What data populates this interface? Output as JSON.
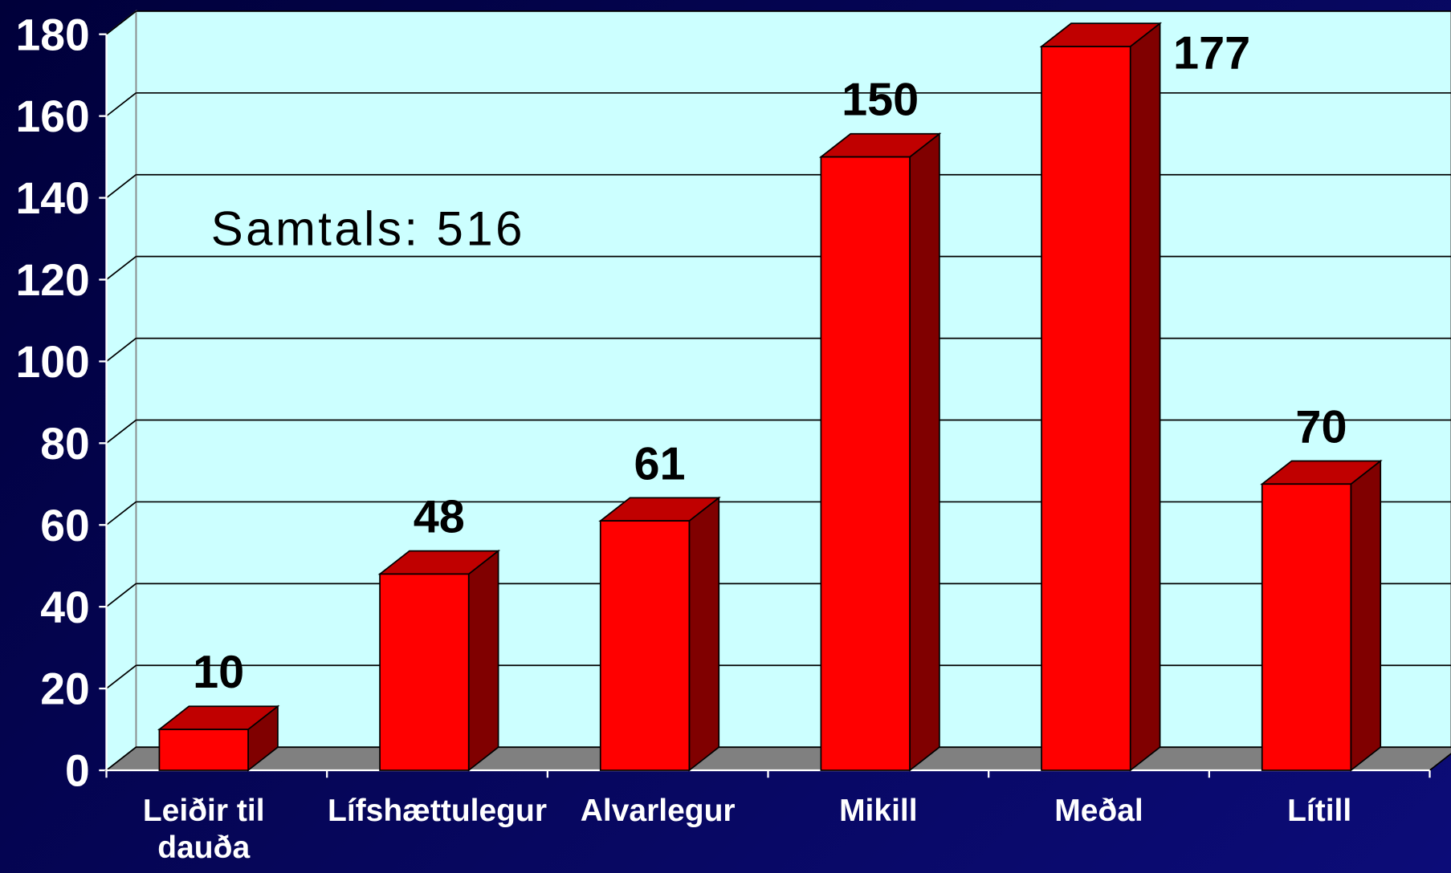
{
  "chart_data": {
    "type": "bar3d",
    "annotation": "Samtals: 516",
    "categories": [
      "Leiðir til dauða",
      "Lífshættulegur",
      "Alvarlegur",
      "Mikill",
      "Meðal",
      "Lítill"
    ],
    "values": [
      10,
      48,
      61,
      150,
      177,
      70
    ],
    "color": "#ff0000",
    "ylim": [
      0,
      180
    ],
    "yticks": [
      0,
      20,
      40,
      60,
      80,
      100,
      120,
      140,
      160,
      180
    ],
    "grid": true
  }
}
